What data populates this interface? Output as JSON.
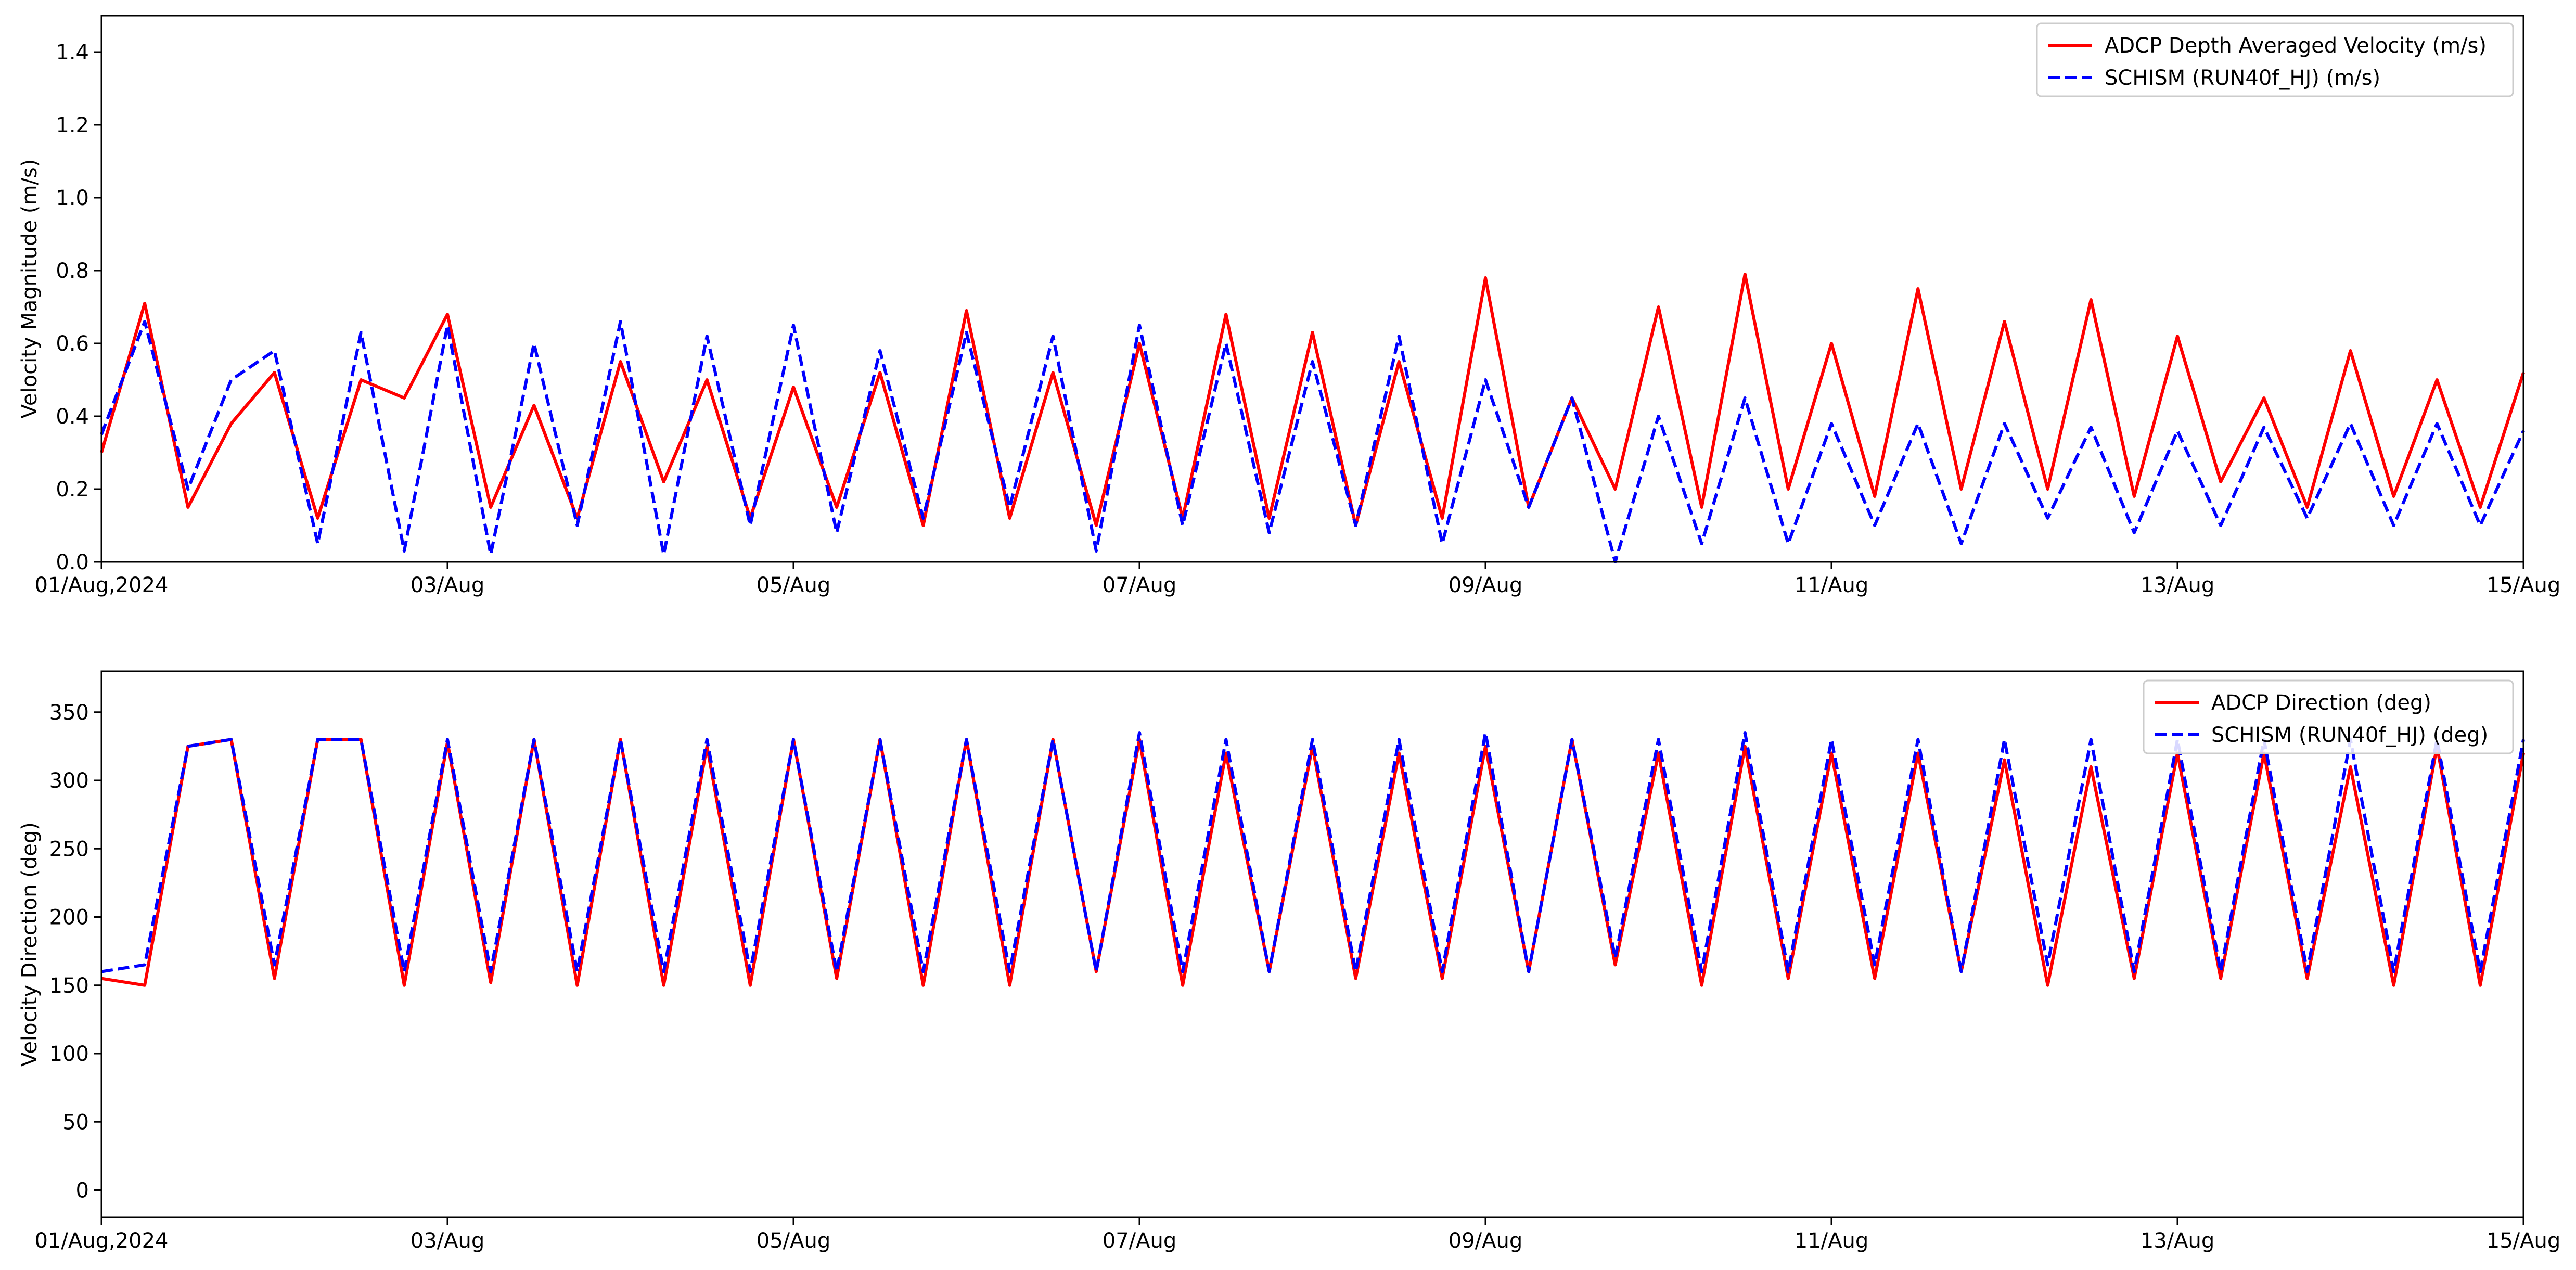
{
  "chart_data": [
    {
      "type": "line",
      "ylabel": "Velocity Magnitude (m/s)",
      "x_range": [
        "2024-08-01",
        "2024-08-15"
      ],
      "ylim": [
        0,
        1.5
      ],
      "x_tick_labels": [
        "01/Aug,2024",
        "03/Aug",
        "05/Aug",
        "07/Aug",
        "09/Aug",
        "11/Aug",
        "13/Aug",
        "15/Aug"
      ],
      "y_ticks": [
        0,
        0.2,
        0.4,
        0.6,
        0.8,
        1.0,
        1.2,
        1.4
      ],
      "y_tick_labels": [
        "0.0",
        "0.2",
        "0.4",
        "0.6",
        "0.8",
        "1.0",
        "1.2",
        "1.4"
      ],
      "legend_position": "top-right",
      "grid": false,
      "series": [
        {
          "name": "ADCP Depth Averaged Velocity (m/s)",
          "color": "#ff0000",
          "style": "solid",
          "x": [
            "2024-08-01 00:00",
            "2024-08-01 06:00",
            "2024-08-01 12:00",
            "2024-08-01 18:00",
            "2024-08-02 00:00",
            "2024-08-02 06:00",
            "2024-08-02 12:00",
            "2024-08-02 18:00",
            "2024-08-03 00:00",
            "2024-08-03 06:00",
            "2024-08-03 12:00",
            "2024-08-03 18:00",
            "2024-08-04 00:00",
            "2024-08-04 06:00",
            "2024-08-04 12:00",
            "2024-08-04 18:00",
            "2024-08-05 00:00",
            "2024-08-05 06:00",
            "2024-08-05 12:00",
            "2024-08-05 18:00",
            "2024-08-06 00:00",
            "2024-08-06 06:00",
            "2024-08-06 12:00",
            "2024-08-06 18:00",
            "2024-08-07 00:00",
            "2024-08-07 06:00",
            "2024-08-07 12:00",
            "2024-08-07 18:00",
            "2024-08-08 00:00",
            "2024-08-08 06:00",
            "2024-08-08 12:00",
            "2024-08-08 18:00",
            "2024-08-09 00:00",
            "2024-08-09 06:00",
            "2024-08-09 12:00",
            "2024-08-09 18:00",
            "2024-08-10 00:00",
            "2024-08-10 06:00",
            "2024-08-10 12:00",
            "2024-08-10 18:00",
            "2024-08-11 00:00",
            "2024-08-11 06:00",
            "2024-08-11 12:00",
            "2024-08-11 18:00",
            "2024-08-12 00:00",
            "2024-08-12 06:00",
            "2024-08-12 12:00",
            "2024-08-12 18:00",
            "2024-08-13 00:00",
            "2024-08-13 06:00",
            "2024-08-13 12:00",
            "2024-08-13 18:00",
            "2024-08-14 00:00",
            "2024-08-14 06:00",
            "2024-08-14 12:00",
            "2024-08-14 18:00",
            "2024-08-15 00:00"
          ],
          "y": [
            0.3,
            0.71,
            0.15,
            0.38,
            0.52,
            0.12,
            0.5,
            0.45,
            0.68,
            0.15,
            0.43,
            0.12,
            0.55,
            0.22,
            0.5,
            0.12,
            0.48,
            0.15,
            0.52,
            0.1,
            0.69,
            0.12,
            0.52,
            0.1,
            0.6,
            0.12,
            0.68,
            0.12,
            0.63,
            0.1,
            0.55,
            0.12,
            0.78,
            0.15,
            0.45,
            0.2,
            0.7,
            0.15,
            0.79,
            0.2,
            0.6,
            0.18,
            0.75,
            0.2,
            0.66,
            0.2,
            0.72,
            0.18,
            0.62,
            0.22,
            0.45,
            0.15,
            0.58,
            0.18,
            0.5,
            0.15,
            0.52
          ]
        },
        {
          "name": "SCHISM (RUN40f_HJ) (m/s)",
          "color": "#0000ff",
          "style": "dashed",
          "x": [
            "2024-08-01 00:00",
            "2024-08-01 06:00",
            "2024-08-01 12:00",
            "2024-08-01 18:00",
            "2024-08-02 00:00",
            "2024-08-02 06:00",
            "2024-08-02 12:00",
            "2024-08-02 18:00",
            "2024-08-03 00:00",
            "2024-08-03 06:00",
            "2024-08-03 12:00",
            "2024-08-03 18:00",
            "2024-08-04 00:00",
            "2024-08-04 06:00",
            "2024-08-04 12:00",
            "2024-08-04 18:00",
            "2024-08-05 00:00",
            "2024-08-05 06:00",
            "2024-08-05 12:00",
            "2024-08-05 18:00",
            "2024-08-06 00:00",
            "2024-08-06 06:00",
            "2024-08-06 12:00",
            "2024-08-06 18:00",
            "2024-08-07 00:00",
            "2024-08-07 06:00",
            "2024-08-07 12:00",
            "2024-08-07 18:00",
            "2024-08-08 00:00",
            "2024-08-08 06:00",
            "2024-08-08 12:00",
            "2024-08-08 18:00",
            "2024-08-09 00:00",
            "2024-08-09 06:00",
            "2024-08-09 12:00",
            "2024-08-09 18:00",
            "2024-08-10 00:00",
            "2024-08-10 06:00",
            "2024-08-10 12:00",
            "2024-08-10 18:00",
            "2024-08-11 00:00",
            "2024-08-11 06:00",
            "2024-08-11 12:00",
            "2024-08-11 18:00",
            "2024-08-12 00:00",
            "2024-08-12 06:00",
            "2024-08-12 12:00",
            "2024-08-12 18:00",
            "2024-08-13 00:00",
            "2024-08-13 06:00",
            "2024-08-13 12:00",
            "2024-08-13 18:00",
            "2024-08-14 00:00",
            "2024-08-14 06:00",
            "2024-08-14 12:00",
            "2024-08-14 18:00",
            "2024-08-15 00:00"
          ],
          "y": [
            0.35,
            0.66,
            0.2,
            0.5,
            0.58,
            0.05,
            0.63,
            0.03,
            0.65,
            0.02,
            0.6,
            0.1,
            0.66,
            0.02,
            0.62,
            0.1,
            0.65,
            0.08,
            0.58,
            0.12,
            0.63,
            0.15,
            0.62,
            0.03,
            0.65,
            0.1,
            0.6,
            0.08,
            0.55,
            0.1,
            0.62,
            0.05,
            0.5,
            0.15,
            0.45,
            0.0,
            0.4,
            0.05,
            0.45,
            0.05,
            0.38,
            0.1,
            0.38,
            0.05,
            0.38,
            0.12,
            0.37,
            0.08,
            0.36,
            0.1,
            0.37,
            0.12,
            0.38,
            0.1,
            0.38,
            0.1,
            0.36
          ]
        }
      ]
    },
    {
      "type": "line",
      "ylabel": "Velocity Direction (deg)",
      "x_range": [
        "2024-08-01",
        "2024-08-15"
      ],
      "ylim": [
        -20,
        380
      ],
      "x_tick_labels": [
        "01/Aug,2024",
        "03/Aug",
        "05/Aug",
        "07/Aug",
        "09/Aug",
        "11/Aug",
        "13/Aug",
        "15/Aug"
      ],
      "y_ticks": [
        0,
        50,
        100,
        150,
        200,
        250,
        300,
        350
      ],
      "y_tick_labels": [
        "0",
        "50",
        "100",
        "150",
        "200",
        "250",
        "300",
        "350"
      ],
      "legend_position": "top-right",
      "grid": false,
      "series": [
        {
          "name": "ADCP Direction (deg)",
          "color": "#ff0000",
          "style": "solid",
          "x": [
            "2024-08-01 00:00",
            "2024-08-01 06:00",
            "2024-08-01 12:00",
            "2024-08-01 18:00",
            "2024-08-02 00:00",
            "2024-08-02 06:00",
            "2024-08-02 12:00",
            "2024-08-02 18:00",
            "2024-08-03 00:00",
            "2024-08-03 06:00",
            "2024-08-03 12:00",
            "2024-08-03 18:00",
            "2024-08-04 00:00",
            "2024-08-04 06:00",
            "2024-08-04 12:00",
            "2024-08-04 18:00",
            "2024-08-05 00:00",
            "2024-08-05 06:00",
            "2024-08-05 12:00",
            "2024-08-05 18:00",
            "2024-08-06 00:00",
            "2024-08-06 06:00",
            "2024-08-06 12:00",
            "2024-08-06 18:00",
            "2024-08-07 00:00",
            "2024-08-07 06:00",
            "2024-08-07 12:00",
            "2024-08-07 18:00",
            "2024-08-08 00:00",
            "2024-08-08 06:00",
            "2024-08-08 12:00",
            "2024-08-08 18:00",
            "2024-08-09 00:00",
            "2024-08-09 06:00",
            "2024-08-09 12:00",
            "2024-08-09 18:00",
            "2024-08-10 00:00",
            "2024-08-10 06:00",
            "2024-08-10 12:00",
            "2024-08-10 18:00",
            "2024-08-11 00:00",
            "2024-08-11 06:00",
            "2024-08-11 12:00",
            "2024-08-11 18:00",
            "2024-08-12 00:00",
            "2024-08-12 06:00",
            "2024-08-12 12:00",
            "2024-08-12 18:00",
            "2024-08-13 00:00",
            "2024-08-13 06:00",
            "2024-08-13 12:00",
            "2024-08-13 18:00",
            "2024-08-14 00:00",
            "2024-08-14 06:00",
            "2024-08-14 12:00",
            "2024-08-14 18:00",
            "2024-08-15 00:00"
          ],
          "y": [
            155,
            150,
            325,
            330,
            155,
            330,
            330,
            150,
            328,
            152,
            330,
            150,
            330,
            150,
            325,
            150,
            330,
            155,
            330,
            150,
            330,
            150,
            330,
            160,
            330,
            150,
            320,
            160,
            325,
            155,
            320,
            155,
            325,
            160,
            330,
            165,
            320,
            150,
            325,
            155,
            320,
            155,
            320,
            160,
            315,
            150,
            310,
            155,
            320,
            155,
            320,
            155,
            310,
            150,
            325,
            150,
            320
          ]
        },
        {
          "name": "SCHISM (RUN40f_HJ) (deg)",
          "color": "#0000ff",
          "style": "dashed",
          "x": [
            "2024-08-01 00:00",
            "2024-08-01 06:00",
            "2024-08-01 12:00",
            "2024-08-01 18:00",
            "2024-08-02 00:00",
            "2024-08-02 06:00",
            "2024-08-02 12:00",
            "2024-08-02 18:00",
            "2024-08-03 00:00",
            "2024-08-03 06:00",
            "2024-08-03 12:00",
            "2024-08-03 18:00",
            "2024-08-04 00:00",
            "2024-08-04 06:00",
            "2024-08-04 12:00",
            "2024-08-04 18:00",
            "2024-08-05 00:00",
            "2024-08-05 06:00",
            "2024-08-05 12:00",
            "2024-08-05 18:00",
            "2024-08-06 00:00",
            "2024-08-06 06:00",
            "2024-08-06 12:00",
            "2024-08-06 18:00",
            "2024-08-07 00:00",
            "2024-08-07 06:00",
            "2024-08-07 12:00",
            "2024-08-07 18:00",
            "2024-08-08 00:00",
            "2024-08-08 06:00",
            "2024-08-08 12:00",
            "2024-08-08 18:00",
            "2024-08-09 00:00",
            "2024-08-09 06:00",
            "2024-08-09 12:00",
            "2024-08-09 18:00",
            "2024-08-10 00:00",
            "2024-08-10 06:00",
            "2024-08-10 12:00",
            "2024-08-10 18:00",
            "2024-08-11 00:00",
            "2024-08-11 06:00",
            "2024-08-11 12:00",
            "2024-08-11 18:00",
            "2024-08-12 00:00",
            "2024-08-12 06:00",
            "2024-08-12 12:00",
            "2024-08-12 18:00",
            "2024-08-13 00:00",
            "2024-08-13 06:00",
            "2024-08-13 12:00",
            "2024-08-13 18:00",
            "2024-08-14 00:00",
            "2024-08-14 06:00",
            "2024-08-14 12:00",
            "2024-08-14 18:00",
            "2024-08-15 00:00"
          ],
          "y": [
            160,
            165,
            325,
            330,
            165,
            330,
            330,
            160,
            330,
            160,
            330,
            160,
            330,
            160,
            330,
            160,
            330,
            160,
            330,
            160,
            330,
            160,
            330,
            160,
            335,
            160,
            330,
            160,
            330,
            160,
            330,
            160,
            335,
            160,
            330,
            170,
            330,
            160,
            335,
            160,
            330,
            165,
            330,
            160,
            330,
            165,
            330,
            160,
            330,
            160,
            330,
            160,
            330,
            160,
            330,
            160,
            330
          ]
        }
      ]
    }
  ]
}
